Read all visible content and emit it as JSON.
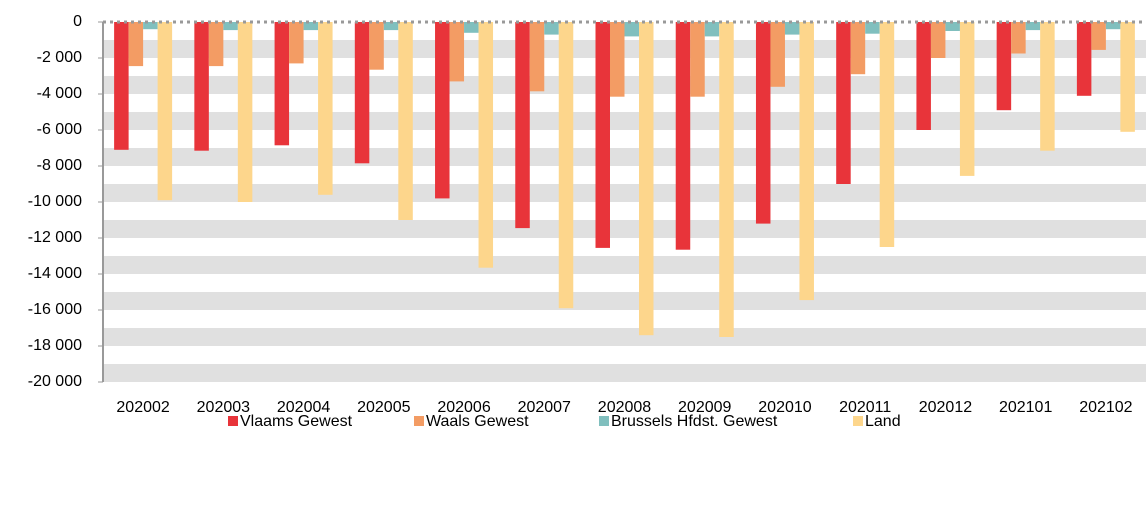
{
  "chart_data": {
    "type": "bar",
    "categories": [
      "202002",
      "202003",
      "202004",
      "202005",
      "202006",
      "202007",
      "202008",
      "202009",
      "202010",
      "202011",
      "202012",
      "202101",
      "202102"
    ],
    "series": [
      {
        "name": "Vlaams Gewest",
        "color": "#e8343a",
        "values": [
          -7100,
          -7150,
          -6850,
          -7850,
          -9800,
          -11450,
          -12550,
          -12650,
          -11200,
          -9000,
          -6000,
          -4900,
          -4100
        ]
      },
      {
        "name": "Waals Gewest",
        "color": "#f39c64",
        "values": [
          -2450,
          -2450,
          -2300,
          -2650,
          -3300,
          -3850,
          -4150,
          -4150,
          -3600,
          -2900,
          -2000,
          -1750,
          -1550
        ]
      },
      {
        "name": "Brussels Hfdst. Gewest",
        "color": "#80bfbe",
        "values": [
          -400,
          -450,
          -450,
          -450,
          -600,
          -700,
          -800,
          -800,
          -700,
          -650,
          -500,
          -450,
          -400
        ]
      },
      {
        "name": "Land",
        "color": "#fdd68c",
        "values": [
          -9900,
          -10000,
          -9600,
          -11000,
          -13650,
          -15900,
          -17400,
          -17500,
          -15450,
          -12500,
          -8550,
          -7150,
          -6100
        ]
      }
    ],
    "ylim": [
      -20000,
      0
    ],
    "yticks": [
      0,
      {
        "value": -2000,
        "label": "-2 000"
      },
      {
        "value": -4000,
        "label": "-4 000"
      },
      {
        "value": -6000,
        "label": "-6 000"
      },
      {
        "value": -8000,
        "label": "-8 000"
      },
      {
        "value": -10000,
        "label": "-10 000"
      },
      {
        "value": -12000,
        "label": "-12 000"
      },
      {
        "value": -14000,
        "label": "-14 000"
      },
      {
        "value": -16000,
        "label": "-16 000"
      },
      {
        "value": -18000,
        "label": "-18 000"
      },
      {
        "value": -20000,
        "label": "-20 000"
      }
    ],
    "grid": true
  }
}
